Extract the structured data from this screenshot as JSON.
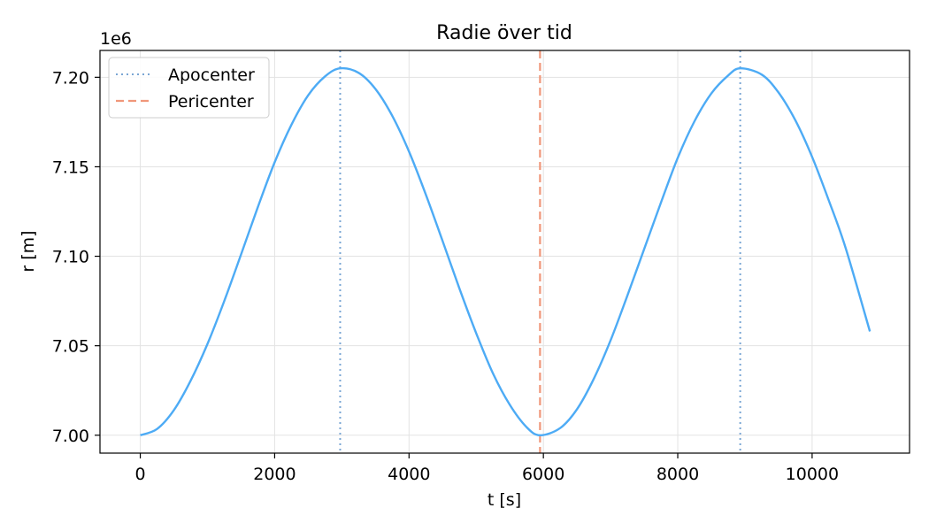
{
  "chart_data": {
    "type": "line",
    "title": "Radie över tid",
    "xlabel": "t [s]",
    "ylabel": "r [m]",
    "y_offset_label": "1e6",
    "y_scale": 1000000,
    "xlim": [
      -600,
      11450
    ],
    "ylim": [
      6990000,
      7215000
    ],
    "xticks": [
      0,
      2000,
      4000,
      6000,
      8000,
      10000
    ],
    "xtick_labels": [
      "0",
      "2000",
      "4000",
      "6000",
      "8000",
      "10000"
    ],
    "yticks": [
      7000000,
      7050000,
      7100000,
      7150000,
      7200000
    ],
    "ytick_labels": [
      "7.00",
      "7.05",
      "7.10",
      "7.15",
      "7.20"
    ],
    "grid": true,
    "legend_position": "top-left",
    "series": [
      {
        "role": "radius",
        "color": "#4dabf5",
        "x": [
          0,
          250,
          500,
          750,
          1000,
          1250,
          1500,
          1750,
          2000,
          2250,
          2500,
          2750,
          2975,
          3250,
          3500,
          3750,
          4000,
          4250,
          4500,
          4750,
          5000,
          5250,
          5500,
          5750,
          5950,
          6250,
          6500,
          6750,
          7000,
          7250,
          7500,
          7750,
          8000,
          8250,
          8500,
          8750,
          8930,
          9250,
          9500,
          9750,
          10000,
          10250,
          10500,
          10860
        ],
        "y": [
          7000000,
          7003500,
          7014000,
          7030500,
          7051000,
          7075000,
          7101000,
          7127500,
          7152500,
          7173500,
          7190000,
          7200500,
          7205000,
          7202500,
          7193500,
          7178500,
          7158500,
          7134500,
          7108500,
          7082000,
          7057000,
          7034500,
          7017000,
          7004500,
          7000000,
          7004000,
          7014500,
          7031500,
          7053000,
          7078000,
          7104000,
          7130000,
          7155000,
          7175500,
          7191000,
          7201000,
          7205000,
          7201500,
          7191500,
          7176000,
          7155500,
          7131000,
          7104500,
          7058000
        ]
      }
    ],
    "vertical_lines": [
      {
        "name": "Apocenter",
        "x": 2975,
        "color": "#7aa6d4",
        "style": "dotted"
      },
      {
        "name": "Apocenter",
        "x": 8930,
        "color": "#7aa6d4",
        "style": "dotted"
      },
      {
        "name": "Pericenter",
        "x": 5950,
        "color": "#f0977a",
        "style": "dashed"
      }
    ],
    "legend": [
      {
        "label": "Apocenter",
        "color": "#7aa6d4",
        "style": "dotted"
      },
      {
        "label": "Pericenter",
        "color": "#f0977a",
        "style": "dashed"
      }
    ]
  }
}
